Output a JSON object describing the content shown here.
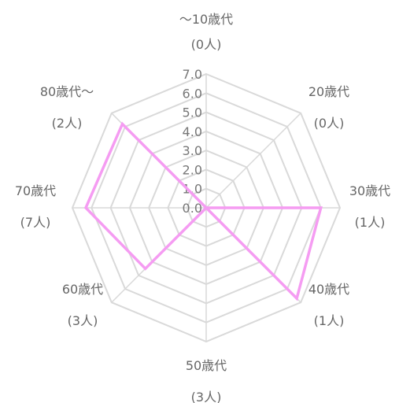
{
  "chart_data": {
    "type": "radar",
    "categories": [
      {
        "name": "～10歳代",
        "count": "(0人)"
      },
      {
        "name": "20歳代",
        "count": "(0人)"
      },
      {
        "name": "30歳代",
        "count": "(1人)"
      },
      {
        "name": "40歳代",
        "count": "(1人)"
      },
      {
        "name": "50歳代",
        "count": "(3人)"
      },
      {
        "name": "60歳代",
        "count": "(3人)"
      },
      {
        "name": "70歳代",
        "count": "(7人)"
      },
      {
        "name": "80歳代～",
        "count": "(2人)"
      }
    ],
    "series": [
      {
        "values": [
          0,
          0,
          6,
          6.7,
          0,
          4.5,
          6.3,
          6.2
        ],
        "color": "#f59cf2"
      }
    ],
    "r_ticks": [
      "0.0",
      "1.0",
      "2.0",
      "3.0",
      "4.0",
      "5.0",
      "6.0",
      "7.0"
    ],
    "r_range": [
      0,
      7
    ],
    "grid": true,
    "grid_color": "#d9d9d9",
    "text_color": "#666666"
  }
}
